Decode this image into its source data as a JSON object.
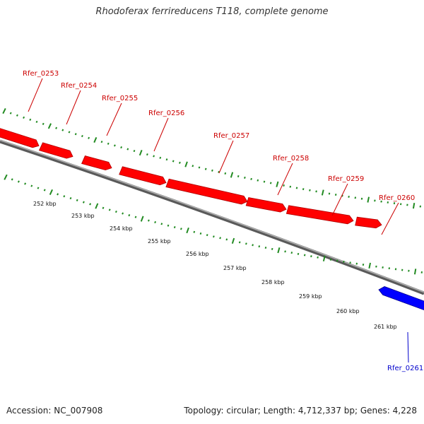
{
  "title": "Rhodoferax ferrireducens T118, complete genome",
  "footer": {
    "accession": "Accession: NC_007908",
    "summary": "Topology: circular; Length: 4,712,337 bp; Genes: 4,228"
  },
  "colors": {
    "forward_gene": "#ff0000",
    "reverse_gene": "#0000ff",
    "forward_label": "#cc0000",
    "reverse_label": "#0000cc",
    "backbone": "#888888",
    "ticks": "#228b22"
  },
  "genes": [
    {
      "label": "Rfer_0253",
      "strand": "forward"
    },
    {
      "label": "Rfer_0254",
      "strand": "forward"
    },
    {
      "label": "Rfer_0255",
      "strand": "forward"
    },
    {
      "label": "Rfer_0256",
      "strand": "forward"
    },
    {
      "label": "Rfer_0257",
      "strand": "forward"
    },
    {
      "label": "Rfer_0258",
      "strand": "forward"
    },
    {
      "label": "Rfer_0259",
      "strand": "forward"
    },
    {
      "label": "Rfer_0260",
      "strand": "forward"
    },
    {
      "label": "Rfer_0261",
      "strand": "reverse"
    }
  ],
  "scale_labels": [
    "252 kbp",
    "253 kbp",
    "254 kbp",
    "255 kbp",
    "256 kbp",
    "257 kbp",
    "258 kbp",
    "259 kbp",
    "260 kbp",
    "261 kbp"
  ]
}
